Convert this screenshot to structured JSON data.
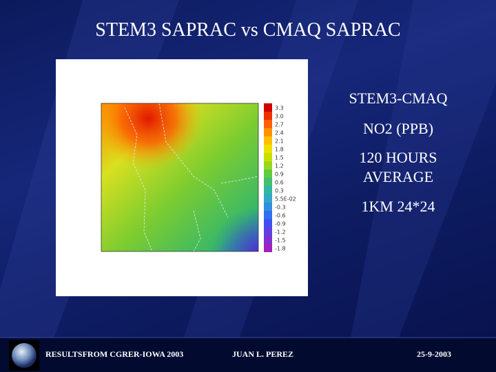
{
  "slide": {
    "title": "STEM3 SAPRAC vs CMAQ SAPRAC",
    "notes": [
      "STEM3-CMAQ",
      "NO2 (PPB)",
      "120 HOURS",
      "AVERAGE",
      "1KM 24*24"
    ],
    "colorbar_labels": [
      "3.3",
      "3.0",
      "2.7",
      "2.4",
      "2.1",
      "1.8",
      "1.5",
      "1.2",
      "0.9",
      "0.6",
      "0.3",
      "5.5E-02",
      "-0.3",
      "-0.6",
      "-0.9",
      "-1.2",
      "-1.5",
      "-1.8"
    ],
    "footer": {
      "source": "RESULTSFROM CGRER-IOWA 2003",
      "author": "JUAN L. PEREZ",
      "date": "25-9-2003"
    }
  }
}
